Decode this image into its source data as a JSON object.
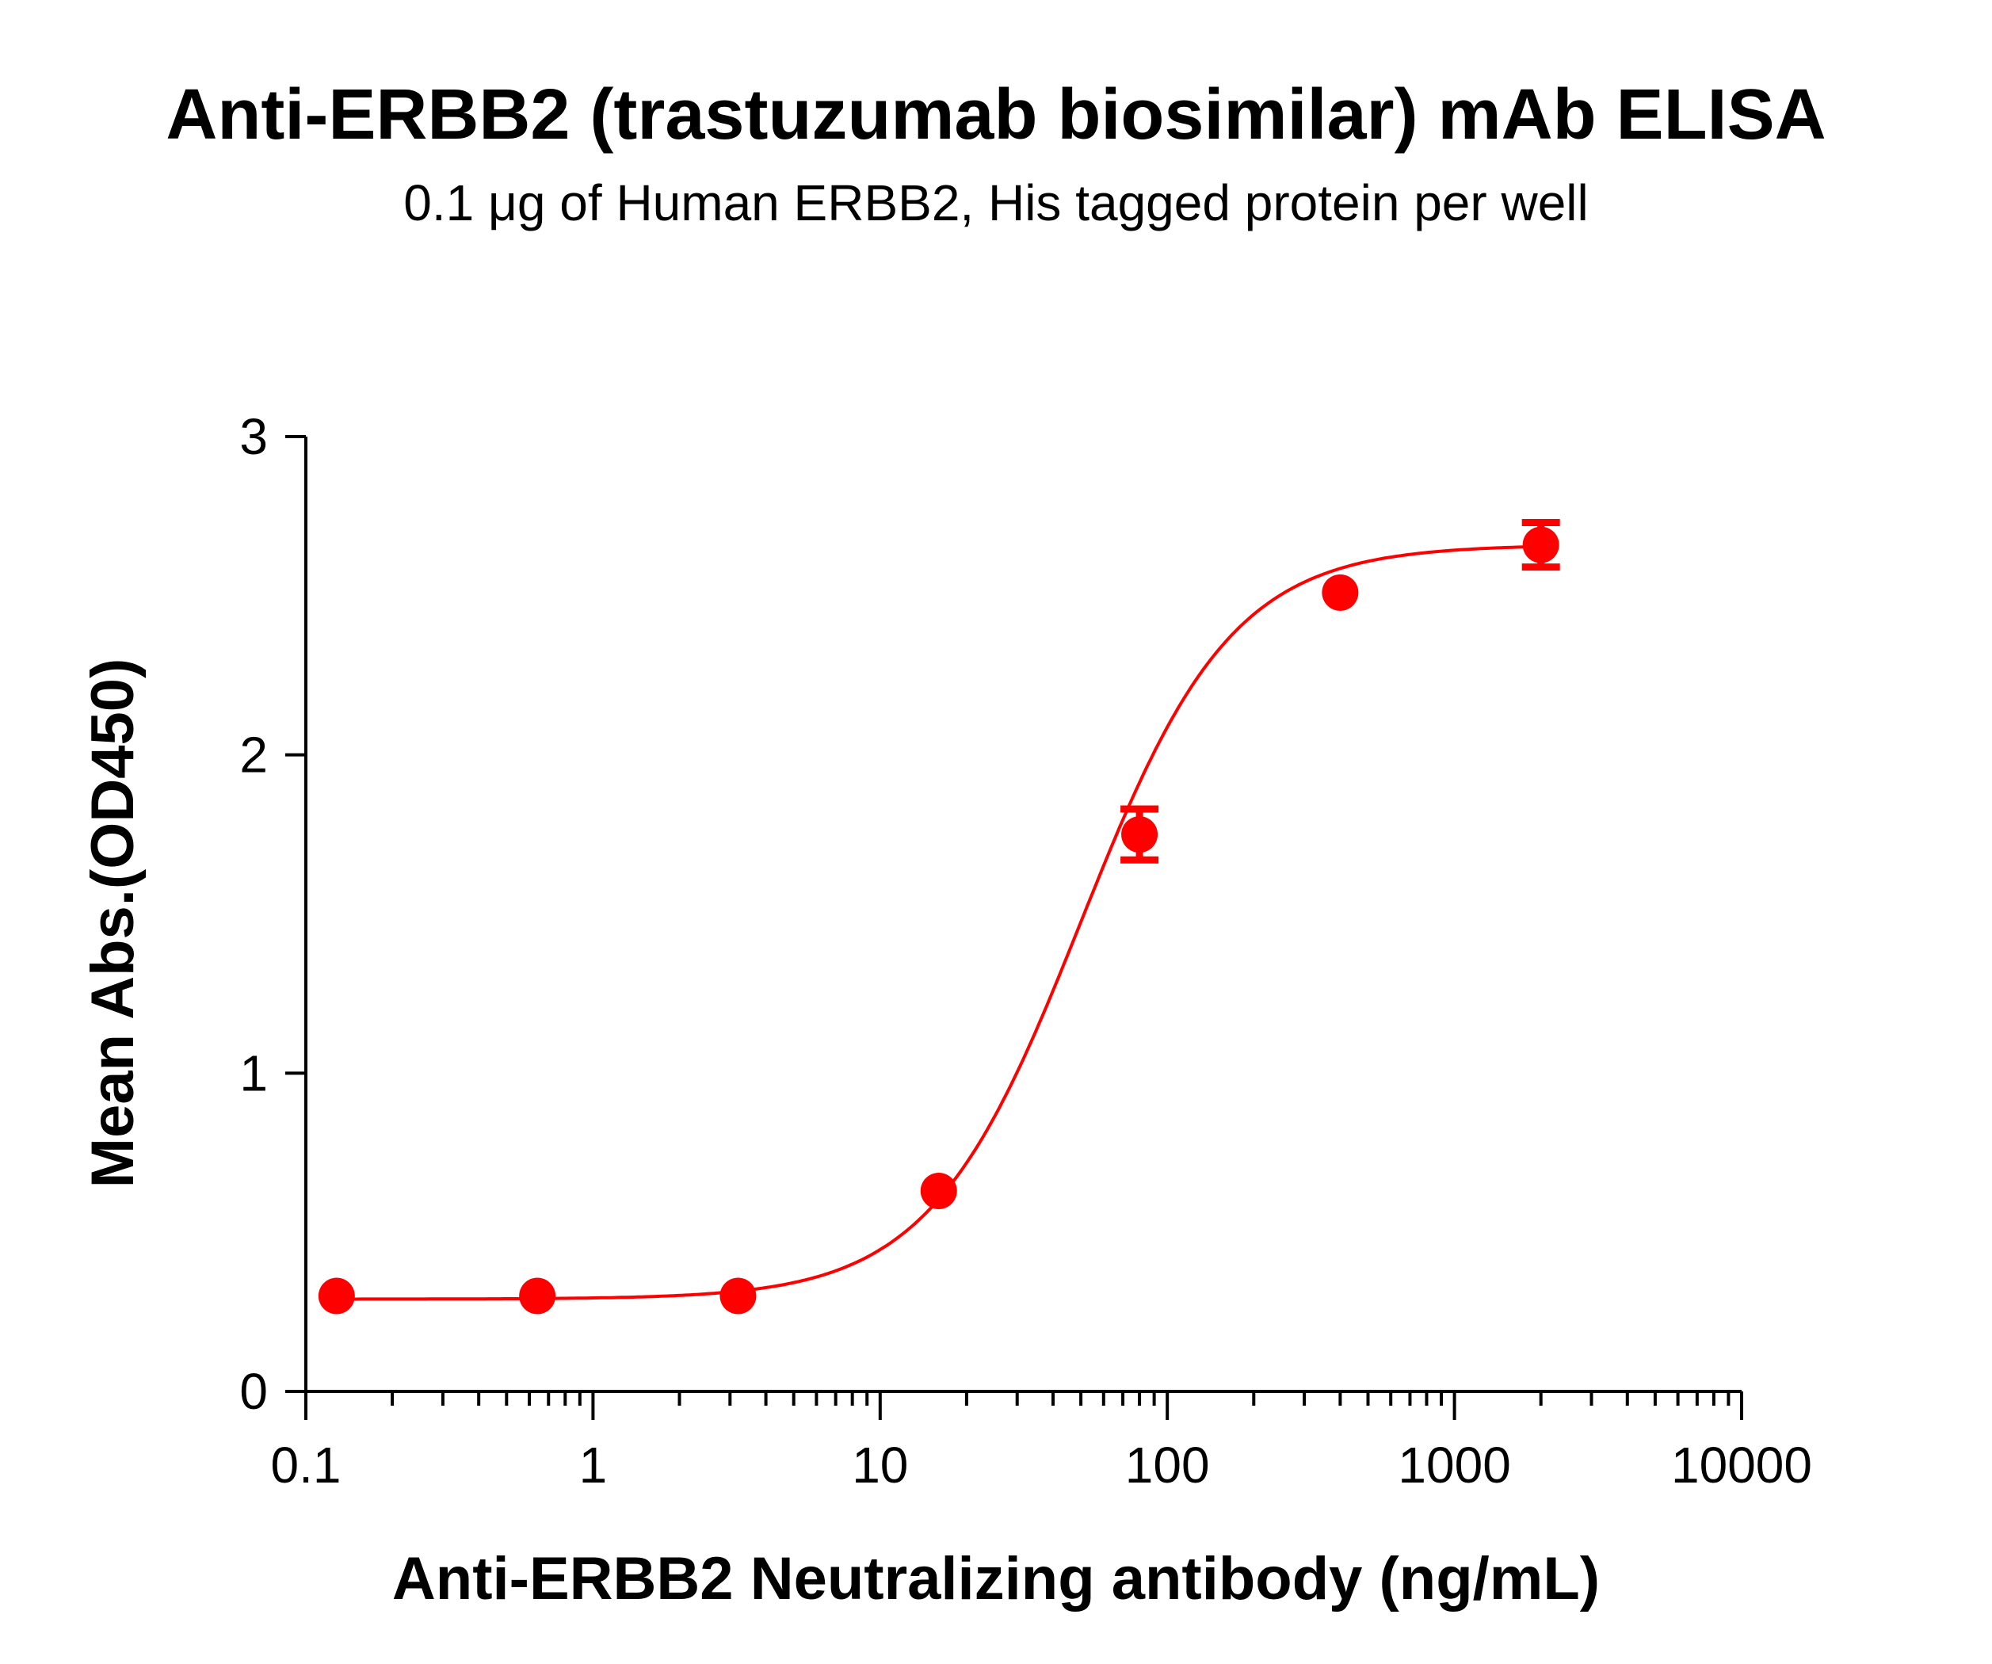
{
  "chart_data": {
    "type": "scatter",
    "title": "Anti-ERBB2 (trastuzumab biosimilar) mAb ELISA",
    "subtitle": "0.1 μg of Human ERBB2, His tagged protein per well",
    "xlabel": "Anti-ERBB2 Neutralizing antibody (ng/mL)",
    "ylabel": "Mean Abs.(OD450)",
    "x_scale": "log",
    "xlim": [
      0.1,
      10000
    ],
    "ylim": [
      0,
      3
    ],
    "x_ticks": [
      0.1,
      1,
      10,
      100,
      1000,
      10000
    ],
    "x_tick_labels": [
      "0.1",
      "1",
      "10",
      "100",
      "1000",
      "10000"
    ],
    "y_ticks": [
      0,
      1,
      2,
      3
    ],
    "y_tick_labels": [
      "0",
      "1",
      "2",
      "3"
    ],
    "grid": false,
    "legend": "none",
    "series": [
      {
        "color": "#ff0000",
        "points": [
          {
            "x": 0.128,
            "y": 0.3,
            "error": 0.0
          },
          {
            "x": 0.64,
            "y": 0.3,
            "error": 0.0
          },
          {
            "x": 3.2,
            "y": 0.3,
            "error": 0.0
          },
          {
            "x": 16,
            "y": 0.63,
            "error": 0.0
          },
          {
            "x": 80,
            "y": 1.75,
            "error": 0.08
          },
          {
            "x": 400,
            "y": 2.51,
            "error": 0.0
          },
          {
            "x": 2000,
            "y": 2.66,
            "error": 0.07
          }
        ],
        "fit_curve": {
          "model": "4PL",
          "bottom": 0.29,
          "top": 2.66,
          "ec50": 50,
          "hill": 1.65
        }
      }
    ]
  }
}
